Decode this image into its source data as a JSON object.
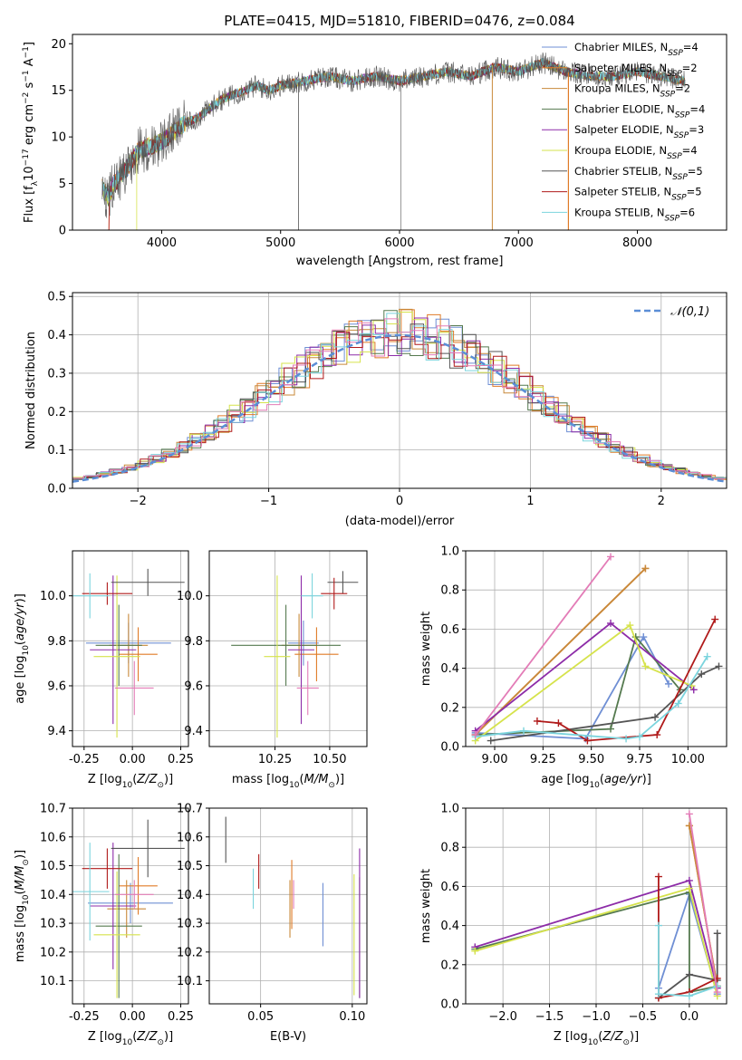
{
  "colors": [
    "#6f8fd4",
    "#e07b27",
    "#c8893a",
    "#557a4f",
    "#8d2ca8",
    "#d6e34c",
    "#555555",
    "#b01a1a",
    "#7bd4dd",
    "#e37cb7"
  ],
  "chart_data": [
    {
      "id": "spectrum",
      "type": "line",
      "title": "PLATE=0415, MJD=51810, FIBERID=0476, z=0.084",
      "xlabel": "wavelength [Angstrom, rest frame]",
      "ylabel": "Flux [f_λ10⁻¹⁷ erg cm⁻² s⁻¹ A⁻¹]",
      "xlim": [
        3250,
        8750
      ],
      "ylim": [
        0,
        21
      ],
      "xticks": [
        4000,
        5000,
        6000,
        7000,
        8000
      ],
      "yticks": [
        0,
        5,
        10,
        15,
        20
      ],
      "envelope": {
        "x": [
          3500,
          3550,
          3600,
          3700,
          3800,
          3900,
          4000,
          4100,
          4200,
          4300,
          4400,
          4500,
          4600,
          4700,
          4800,
          4900,
          5000,
          5200,
          5400,
          5600,
          5800,
          6000,
          6200,
          6400,
          6600,
          6800,
          7000,
          7200,
          7400,
          7600,
          7800,
          8000,
          8200,
          8400
        ],
        "y": [
          4.5,
          3.5,
          5.0,
          6.5,
          8.5,
          9.0,
          9.5,
          10.5,
          11.5,
          12.0,
          13.0,
          14.0,
          14.5,
          15.0,
          15.5,
          15.0,
          15.5,
          16.0,
          16.5,
          16.0,
          16.5,
          16.0,
          16.5,
          17.0,
          16.5,
          17.5,
          17.0,
          18.0,
          17.0,
          16.5,
          16.5,
          17.0,
          16.5,
          16.0
        ]
      },
      "legend": [
        {
          "label": "Chabrier MILES, N_SSP=4"
        },
        {
          "label": "Salpeter MILES, N_SSP=2"
        },
        {
          "label": "Kroupa MILES, N_SSP=2"
        },
        {
          "label": "Chabrier ELODIE, N_SSP=4"
        },
        {
          "label": "Salpeter ELODIE, N_SSP=3"
        },
        {
          "label": "Kroupa ELODIE, N_SSP=4"
        },
        {
          "label": "Chabrier STELIB, N_SSP=5"
        },
        {
          "label": "Salpeter STELIB, N_SSP=5"
        },
        {
          "label": "Kroupa STELIB, N_SSP=6"
        }
      ]
    },
    {
      "id": "residuals",
      "type": "step",
      "xlabel": "(data-model)/error",
      "ylabel": "Normed distribution",
      "xlim": [
        -2.5,
        2.5
      ],
      "ylim": [
        0,
        0.51
      ],
      "xticks": [
        -2,
        -1,
        0,
        1,
        2
      ],
      "yticks": [
        0.0,
        0.1,
        0.2,
        0.3,
        0.4,
        0.5
      ],
      "gaussian_label": "𝒩(0,1)",
      "bin_width": 0.1
    },
    {
      "id": "age_vs_Z",
      "type": "errorbar",
      "xlabel": "Z [log10(Z/Z⊙)]",
      "ylabel": "age  [log10(age/yr)]",
      "xlim": [
        -0.31,
        0.29
      ],
      "ylim": [
        9.33,
        10.2
      ],
      "xticks": [
        -0.25,
        0.0,
        0.25
      ],
      "yticks": [
        9.4,
        9.6,
        9.8,
        10.0
      ],
      "points": [
        {
          "x": -0.02,
          "y": 9.79,
          "xerr": 0.22,
          "yerr": 0.09
        },
        {
          "x": 0.03,
          "y": 9.74,
          "xerr": 0.1,
          "yerr": 0.12
        },
        {
          "x": -0.02,
          "y": 9.78,
          "xerr": 0.1,
          "yerr": 0.14
        },
        {
          "x": -0.07,
          "y": 9.78,
          "xerr": 0.12,
          "yerr": 0.18
        },
        {
          "x": -0.1,
          "y": 9.76,
          "xerr": 0.12,
          "yerr": 0.33
        },
        {
          "x": -0.08,
          "y": 9.73,
          "xerr": 0.12,
          "yerr": 0.36
        },
        {
          "x": 0.08,
          "y": 10.06,
          "xerr": 0.19,
          "yerr": 0.06
        },
        {
          "x": -0.13,
          "y": 10.01,
          "xerr": 0.13,
          "yerr": 0.05
        },
        {
          "x": -0.22,
          "y": 10.0,
          "xerr": 0.1,
          "yerr": 0.1
        },
        {
          "x": 0.01,
          "y": 9.59,
          "xerr": 0.1,
          "yerr": 0.12
        }
      ]
    },
    {
      "id": "age_vs_mass",
      "type": "errorbar",
      "xlabel": "mass [log10(M/M⊙)]",
      "ylabel": "",
      "xlim": [
        9.95,
        10.67
      ],
      "ylim": [
        9.33,
        10.2
      ],
      "xticks": [
        10.25,
        10.5
      ],
      "yticks": [
        9.4,
        9.6,
        9.8,
        10.0
      ],
      "points": [
        {
          "x": 10.38,
          "y": 9.79,
          "xerr": 0.07,
          "yerr": 0.1
        },
        {
          "x": 10.44,
          "y": 9.74,
          "xerr": 0.1,
          "yerr": 0.12
        },
        {
          "x": 10.36,
          "y": 9.78,
          "xerr": 0.08,
          "yerr": 0.14
        },
        {
          "x": 10.3,
          "y": 9.78,
          "xerr": 0.25,
          "yerr": 0.18
        },
        {
          "x": 10.37,
          "y": 9.76,
          "xerr": 0.06,
          "yerr": 0.33
        },
        {
          "x": 10.26,
          "y": 9.73,
          "xerr": 0.06,
          "yerr": 0.36
        },
        {
          "x": 10.56,
          "y": 10.06,
          "xerr": 0.07,
          "yerr": 0.05
        },
        {
          "x": 10.52,
          "y": 10.01,
          "xerr": 0.06,
          "yerr": 0.07
        },
        {
          "x": 10.42,
          "y": 10.0,
          "xerr": 0.05,
          "yerr": 0.1
        },
        {
          "x": 10.4,
          "y": 9.59,
          "xerr": 0.05,
          "yerr": 0.12
        }
      ]
    },
    {
      "id": "mass_weight_vs_age",
      "type": "line",
      "xlabel": "age  [log10(age/yr)]",
      "ylabel": "mass weight",
      "xlim": [
        8.85,
        10.2
      ],
      "ylim": [
        0,
        1.0
      ],
      "xticks": [
        9.0,
        9.25,
        9.5,
        9.75,
        10.0
      ],
      "yticks": [
        0.0,
        0.2,
        0.4,
        0.6,
        0.8,
        1.0
      ],
      "series": [
        {
          "x": [
            8.9,
            9.47,
            9.77,
            9.9
          ],
          "y": [
            0.07,
            0.04,
            0.56,
            0.32
          ]
        },
        {
          "x": [
            8.9,
            9.78
          ],
          "y": [
            0.06,
            0.91
          ]
        },
        {
          "x": [
            8.9,
            9.78
          ],
          "y": [
            0.06,
            0.91
          ]
        },
        {
          "x": [
            8.9,
            9.6,
            9.73,
            9.96
          ],
          "y": [
            0.06,
            0.09,
            0.56,
            0.29
          ]
        },
        {
          "x": [
            8.9,
            9.6,
            10.03
          ],
          "y": [
            0.08,
            0.63,
            0.29
          ]
        },
        {
          "x": [
            8.9,
            9.7,
            9.78,
            10.02
          ],
          "y": [
            0.03,
            0.62,
            0.41,
            0.31
          ]
        },
        {
          "x": [
            8.98,
            9.83,
            10.07,
            10.16
          ],
          "y": [
            0.03,
            0.15,
            0.37,
            0.41
          ]
        },
        {
          "x": [
            9.22,
            9.33,
            9.48,
            9.84,
            10.14
          ],
          "y": [
            0.13,
            0.12,
            0.03,
            0.06,
            0.65
          ]
        },
        {
          "x": [
            8.9,
            9.15,
            9.68,
            9.75,
            9.95,
            10.1
          ],
          "y": [
            0.05,
            0.08,
            0.04,
            0.05,
            0.22,
            0.46
          ]
        },
        {
          "x": [
            8.9,
            9.6
          ],
          "y": [
            0.06,
            0.97
          ]
        }
      ]
    },
    {
      "id": "mass_vs_Z",
      "type": "errorbar",
      "xlabel": "Z [log10(Z/Z⊙)]",
      "ylabel": "mass [log10(M/M⊙)]",
      "xlim": [
        -0.31,
        0.29
      ],
      "ylim": [
        10.02,
        10.7
      ],
      "xticks": [
        -0.25,
        0.0,
        0.25
      ],
      "yticks": [
        10.1,
        10.2,
        10.3,
        10.4,
        10.5,
        10.6,
        10.7
      ],
      "points": [
        {
          "x": -0.01,
          "y": 10.37,
          "xerr": 0.22,
          "yerr": 0.07
        },
        {
          "x": 0.03,
          "y": 10.43,
          "xerr": 0.1,
          "yerr": 0.1
        },
        {
          "x": -0.03,
          "y": 10.35,
          "xerr": 0.1,
          "yerr": 0.1
        },
        {
          "x": -0.07,
          "y": 10.29,
          "xerr": 0.12,
          "yerr": 0.25
        },
        {
          "x": -0.1,
          "y": 10.36,
          "xerr": 0.12,
          "yerr": 0.22
        },
        {
          "x": -0.08,
          "y": 10.26,
          "xerr": 0.12,
          "yerr": 0.22
        },
        {
          "x": 0.08,
          "y": 10.56,
          "xerr": 0.19,
          "yerr": 0.1
        },
        {
          "x": -0.13,
          "y": 10.49,
          "xerr": 0.13,
          "yerr": 0.07
        },
        {
          "x": -0.22,
          "y": 10.41,
          "xerr": 0.1,
          "yerr": 0.17
        },
        {
          "x": 0.01,
          "y": 10.4,
          "xerr": 0.1,
          "yerr": 0.05
        }
      ]
    },
    {
      "id": "mass_vs_ebv",
      "type": "errorbar",
      "xlabel": "E(B-V)",
      "ylabel": "",
      "xlim": [
        0.022,
        0.108
      ],
      "ylim": [
        10.02,
        10.7
      ],
      "xticks": [
        0.05,
        0.1
      ],
      "yticks": [
        10.1,
        10.2,
        10.3,
        10.4,
        10.5,
        10.6,
        10.7
      ],
      "points": [
        {
          "x": 0.084,
          "y": 10.33,
          "xerr": 0,
          "yerr": 0.11
        },
        {
          "x": 0.067,
          "y": 10.4,
          "xerr": 0,
          "yerr": 0.12
        },
        {
          "x": 0.066,
          "y": 10.35,
          "xerr": 0,
          "yerr": 0.1
        },
        {
          "x": 0.104,
          "y": 10.25,
          "xerr": 0,
          "yerr": 0.21
        },
        {
          "x": 0.104,
          "y": 10.3,
          "xerr": 0,
          "yerr": 0.26
        },
        {
          "x": 0.101,
          "y": 10.26,
          "xerr": 0,
          "yerr": 0.21
        },
        {
          "x": 0.031,
          "y": 10.59,
          "xerr": 0,
          "yerr": 0.08
        },
        {
          "x": 0.049,
          "y": 10.48,
          "xerr": 0,
          "yerr": 0.06
        },
        {
          "x": 0.046,
          "y": 10.42,
          "xerr": 0,
          "yerr": 0.07
        },
        {
          "x": 0.068,
          "y": 10.4,
          "xerr": 0,
          "yerr": 0.05
        }
      ]
    },
    {
      "id": "mass_weight_vs_Z",
      "type": "line",
      "xlabel": "Z [log10(Z/Z⊙)]",
      "ylabel": "mass weight",
      "xlim": [
        -2.4,
        0.4
      ],
      "ylim": [
        0,
        1.0
      ],
      "xticks": [
        -2.0,
        -1.5,
        -1.0,
        -0.5,
        0.0
      ],
      "yticks": [
        0.0,
        0.2,
        0.4,
        0.6,
        0.8,
        1.0
      ],
      "series": [
        {
          "x": [
            -0.33,
            0.0,
            0.3
          ],
          "y": [
            0.08,
            0.56,
            0.05
          ]
        },
        {
          "x": [
            0.0,
            0.3
          ],
          "y": [
            0.91,
            0.09
          ]
        },
        {
          "x": [
            0.0,
            0.3
          ],
          "y": [
            0.91,
            0.09
          ]
        },
        {
          "x": [
            -2.3,
            0.0,
            0.0,
            0.3
          ],
          "y": [
            0.28,
            0.57,
            0.06,
            0.09
          ]
        },
        {
          "x": [
            -2.3,
            0.0,
            0.3
          ],
          "y": [
            0.29,
            0.63,
            0.08
          ]
        },
        {
          "x": [
            -2.3,
            0.0,
            0.3
          ],
          "y": [
            0.27,
            0.59,
            0.04
          ]
        },
        {
          "x": [
            -0.33,
            0.0,
            0.3,
            0.3
          ],
          "y": [
            0.03,
            0.15,
            0.12,
            0.36
          ]
        },
        {
          "x": [
            -0.33,
            -0.33,
            0.0,
            0.3
          ],
          "y": [
            0.65,
            0.03,
            0.06,
            0.13
          ]
        },
        {
          "x": [
            -0.33,
            -0.33,
            0.0,
            0.3
          ],
          "y": [
            0.4,
            0.05,
            0.04,
            0.09
          ]
        },
        {
          "x": [
            0.0,
            0.3
          ],
          "y": [
            0.97,
            0.06
          ]
        }
      ]
    }
  ]
}
